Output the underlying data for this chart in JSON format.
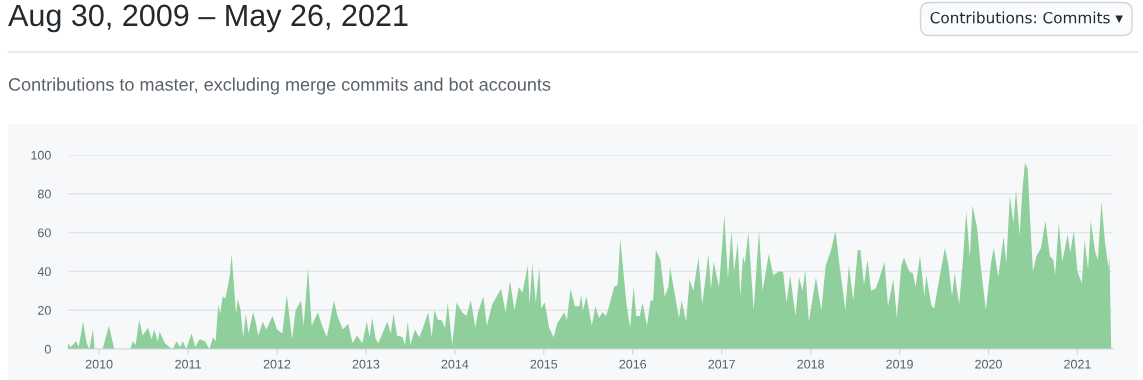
{
  "chart_data": {
    "type": "area",
    "title": "Aug 30, 2009 – May 26, 2021",
    "subtitle": "Contributions to master, excluding merge commits and bot accounts",
    "annotations": [
      "Contributions: Commits ▾"
    ],
    "xlim": [
      2009.65,
      2021.4
    ],
    "xticks": [
      2010,
      2011,
      2012,
      2013,
      2014,
      2015,
      2016,
      2017,
      2018,
      2019,
      2020,
      2021
    ],
    "ylim": [
      0,
      100
    ],
    "yticks": [
      0,
      20,
      40,
      60,
      80,
      100
    ],
    "grid": "y",
    "series": [
      {
        "color": "#8ecf9c",
        "x": [
          2009.65,
          2009.68,
          2009.74,
          2009.77,
          2009.82,
          2009.86,
          2009.89,
          2009.93,
          2009.95,
          2010.04,
          2010.11,
          2010.17,
          2010.35,
          2010.38,
          2010.41,
          2010.45,
          2010.49,
          2010.55,
          2010.59,
          2010.62,
          2010.66,
          2010.68,
          2010.74,
          2010.79,
          2010.83,
          2010.87,
          2010.91,
          2010.94,
          2010.98,
          2011.04,
          2011.08,
          2011.13,
          2011.19,
          2011.24,
          2011.28,
          2011.31,
          2011.34,
          2011.36,
          2011.39,
          2011.42,
          2011.45,
          2011.47,
          2011.49,
          2011.52,
          2011.54,
          2011.56,
          2011.59,
          2011.62,
          2011.65,
          2011.68,
          2011.73,
          2011.75,
          2011.79,
          2011.84,
          2011.88,
          2011.95,
          2012.0,
          2012.06,
          2012.11,
          2012.17,
          2012.21,
          2012.27,
          2012.3,
          2012.35,
          2012.39,
          2012.46,
          2012.5,
          2012.56,
          2012.64,
          2012.68,
          2012.74,
          2012.8,
          2012.85,
          2012.9,
          2012.96,
          2013.01,
          2013.04,
          2013.07,
          2013.11,
          2013.14,
          2013.24,
          2013.28,
          2013.31,
          2013.35,
          2013.41,
          2013.44,
          2013.47,
          2013.5,
          2013.55,
          2013.6,
          2013.65,
          2013.7,
          2013.74,
          2013.77,
          2013.81,
          2013.85,
          2013.89,
          2013.92,
          2013.97,
          2014.02,
          2014.08,
          2014.13,
          2014.18,
          2014.23,
          2014.26,
          2014.32,
          2014.36,
          2014.42,
          2014.47,
          2014.52,
          2014.57,
          2014.62,
          2014.67,
          2014.72,
          2014.76,
          2014.82,
          2014.84,
          2014.87,
          2014.91,
          2014.95,
          2014.97,
          2015.01,
          2015.06,
          2015.11,
          2015.15,
          2015.23,
          2015.26,
          2015.3,
          2015.35,
          2015.4,
          2015.42,
          2015.44,
          2015.48,
          2015.54,
          2015.58,
          2015.62,
          2015.66,
          2015.7,
          2015.74,
          2015.79,
          2015.83,
          2015.86,
          2015.89,
          2015.93,
          2015.97,
          2016.01,
          2016.04,
          2016.08,
          2016.11,
          2016.16,
          2016.2,
          2016.23,
          2016.26,
          2016.31,
          2016.36,
          2016.4,
          2016.42,
          2016.47,
          2016.52,
          2016.55,
          2016.6,
          2016.64,
          2016.68,
          2016.74,
          2016.78,
          2016.82,
          2016.85,
          2016.88,
          2016.91,
          2016.97,
          2017.03,
          2017.07,
          2017.11,
          2017.14,
          2017.18,
          2017.21,
          2017.24,
          2017.26,
          2017.3,
          2017.36,
          2017.42,
          2017.46,
          2017.53,
          2017.58,
          2017.64,
          2017.69,
          2017.73,
          2017.77,
          2017.83,
          2017.87,
          2017.91,
          2017.94,
          2017.98,
          2018.06,
          2018.12,
          2018.17,
          2018.23,
          2018.28,
          2018.32,
          2018.36,
          2018.39,
          2018.43,
          2018.48,
          2018.53,
          2018.56,
          2018.6,
          2018.64,
          2018.68,
          2018.73,
          2018.77,
          2018.83,
          2018.87,
          2018.93,
          2018.97,
          2019.02,
          2019.05,
          2019.11,
          2019.15,
          2019.18,
          2019.23,
          2019.28,
          2019.3,
          2019.36,
          2019.39,
          2019.45,
          2019.51,
          2019.55,
          2019.59,
          2019.62,
          2019.67,
          2019.71,
          2019.75,
          2019.79,
          2019.82,
          2019.87,
          2019.91,
          2019.97,
          2020.03,
          2020.06,
          2020.11,
          2020.17,
          2020.2,
          2020.24,
          2020.28,
          2020.31,
          2020.35,
          2020.38,
          2020.41,
          2020.44,
          2020.47,
          2020.5,
          2020.54,
          2020.59,
          2020.64,
          2020.69,
          2020.73,
          2020.75,
          2020.79,
          2020.83,
          2020.89,
          2020.92,
          2020.96,
          2021.0,
          2021.05,
          2021.08,
          2021.12,
          2021.15,
          2021.2,
          2021.23,
          2021.27,
          2021.31,
          2021.35,
          2021.36,
          2021.38
        ],
        "values": [
          3,
          1,
          4,
          1,
          14,
          3,
          0,
          10,
          0,
          0,
          12,
          0,
          0,
          4,
          2,
          15,
          7,
          11,
          5,
          10,
          4,
          9,
          3,
          1,
          0,
          4,
          1,
          4,
          0,
          8,
          1,
          5,
          4,
          0,
          6,
          4,
          23,
          18,
          27,
          26,
          33,
          38,
          49,
          30,
          18,
          26,
          20,
          6,
          18,
          8,
          19,
          16,
          7,
          14,
          10,
          17,
          10,
          8,
          28,
          5,
          20,
          25,
          12,
          42,
          12,
          19,
          13,
          6,
          25,
          17,
          10,
          13,
          3,
          7,
          3,
          14,
          6,
          16,
          5,
          3,
          14,
          8,
          18,
          7,
          6,
          2,
          14,
          2,
          10,
          6,
          12,
          19,
          6,
          20,
          15,
          15,
          11,
          24,
          2,
          24,
          19,
          17,
          25,
          11,
          19,
          27,
          12,
          23,
          27,
          31,
          19,
          35,
          20,
          32,
          29,
          43,
          23,
          44,
          24,
          42,
          21,
          24,
          11,
          6,
          13,
          19,
          15,
          31,
          22,
          22,
          28,
          20,
          27,
          12,
          22,
          16,
          19,
          17,
          23,
          32,
          33,
          57,
          42,
          23,
          11,
          32,
          17,
          17,
          24,
          12,
          25,
          25,
          51,
          46,
          27,
          32,
          42,
          29,
          16,
          25,
          14,
          36,
          30,
          47,
          23,
          37,
          49,
          31,
          45,
          32,
          69,
          36,
          61,
          40,
          55,
          27,
          48,
          44,
          60,
          20,
          61,
          30,
          49,
          38,
          40,
          40,
          24,
          38,
          17,
          37,
          30,
          41,
          14,
          37,
          20,
          43,
          51,
          61,
          45,
          31,
          20,
          43,
          25,
          51,
          51,
          33,
          46,
          30,
          31,
          36,
          45,
          22,
          36,
          16,
          43,
          47,
          40,
          39,
          32,
          48,
          27,
          38,
          22,
          21,
          37,
          52,
          43,
          27,
          39,
          23,
          44,
          71,
          47,
          74,
          63,
          44,
          20,
          45,
          52,
          37,
          58,
          44,
          79,
          65,
          82,
          58,
          81,
          96,
          93,
          65,
          40,
          48,
          52,
          66,
          48,
          46,
          38,
          65,
          45,
          59,
          50,
          61,
          40,
          34,
          56,
          41,
          66,
          50,
          46,
          76,
          55,
          42,
          48,
          0
        ]
      }
    ]
  }
}
